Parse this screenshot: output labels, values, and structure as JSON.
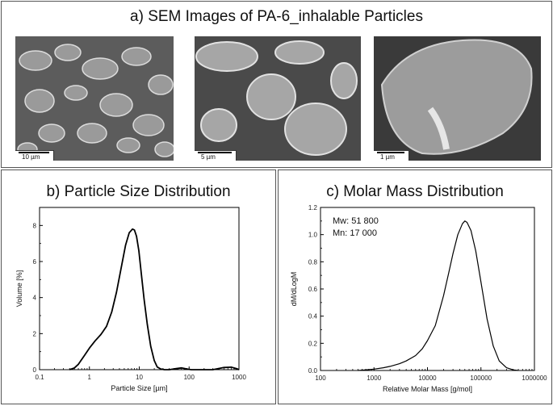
{
  "panels": {
    "a": {
      "title": "a) SEM Images of PA-6_inhalable Particles"
    },
    "b": {
      "title": "b) Particle Size Distribution"
    },
    "c": {
      "title": "c) Molar Mass Distribution"
    }
  },
  "sem_images": [
    {
      "scale_label": "10 µm"
    },
    {
      "scale_label": "5 µm"
    },
    {
      "scale_label": "1 µm"
    }
  ],
  "chart_data": [
    {
      "type": "line",
      "title": "b) Particle Size Distribution",
      "xlabel": "Particle Size [µm]",
      "ylabel": "Volume [%]",
      "x_scale": "log",
      "xlim": [
        0.1,
        1000
      ],
      "ylim": [
        0,
        9
      ],
      "x_ticks": [
        "0.1",
        "1",
        "10",
        "100",
        "1000"
      ],
      "y_ticks": [
        "0",
        "2",
        "4",
        "6",
        "8"
      ],
      "grid": false,
      "series": [
        {
          "x": [
            0.4,
            0.5,
            0.6,
            0.8,
            1.0,
            1.3,
            1.7,
            2.2,
            2.8,
            3.5,
            4.3,
            5.3,
            6.3,
            7.3,
            8.0,
            8.8,
            9.8,
            11,
            12.5,
            14.5,
            17,
            20,
            23,
            27,
            32,
            40,
            55,
            70,
            90,
            110,
            150,
            300,
            500,
            700,
            900,
            1000
          ],
          "y": [
            0,
            0.1,
            0.3,
            0.8,
            1.2,
            1.6,
            1.95,
            2.4,
            3.2,
            4.3,
            5.6,
            6.9,
            7.6,
            7.8,
            7.75,
            7.4,
            6.6,
            5.3,
            3.9,
            2.5,
            1.3,
            0.5,
            0.15,
            0.04,
            0,
            0,
            0.06,
            0.1,
            0.04,
            0,
            0,
            0,
            0.12,
            0.14,
            0.06,
            0
          ]
        }
      ]
    },
    {
      "type": "line",
      "title": "c) Molar Mass Distribution",
      "xlabel": "Relative Molar Mass [g/mol]",
      "ylabel": "dM/dLogM",
      "x_scale": "log",
      "xlim": [
        100,
        1000000
      ],
      "ylim": [
        0,
        1.2
      ],
      "x_ticks": [
        "100",
        "1000",
        "10000",
        "100000",
        "1000000"
      ],
      "y_ticks": [
        "0.0",
        "0.2",
        "0.4",
        "0.6",
        "0.8",
        "1.0",
        "1.2"
      ],
      "grid": false,
      "annotations": [
        "Mw: 51 800",
        "Mn: 17 000"
      ],
      "series": [
        {
          "x": [
            500,
            700,
            1000,
            1500,
            2000,
            3000,
            4000,
            6000,
            8000,
            10000,
            14000,
            20000,
            25000,
            30000,
            37000,
            45000,
            50000,
            55000,
            65000,
            80000,
            100000,
            130000,
            170000,
            220000,
            300000,
            400000,
            500000
          ],
          "y": [
            0.0,
            0.005,
            0.01,
            0.02,
            0.03,
            0.05,
            0.07,
            0.11,
            0.16,
            0.22,
            0.33,
            0.55,
            0.72,
            0.86,
            1.0,
            1.08,
            1.1,
            1.09,
            1.03,
            0.88,
            0.65,
            0.38,
            0.18,
            0.07,
            0.02,
            0.005,
            0.0
          ]
        }
      ]
    }
  ]
}
